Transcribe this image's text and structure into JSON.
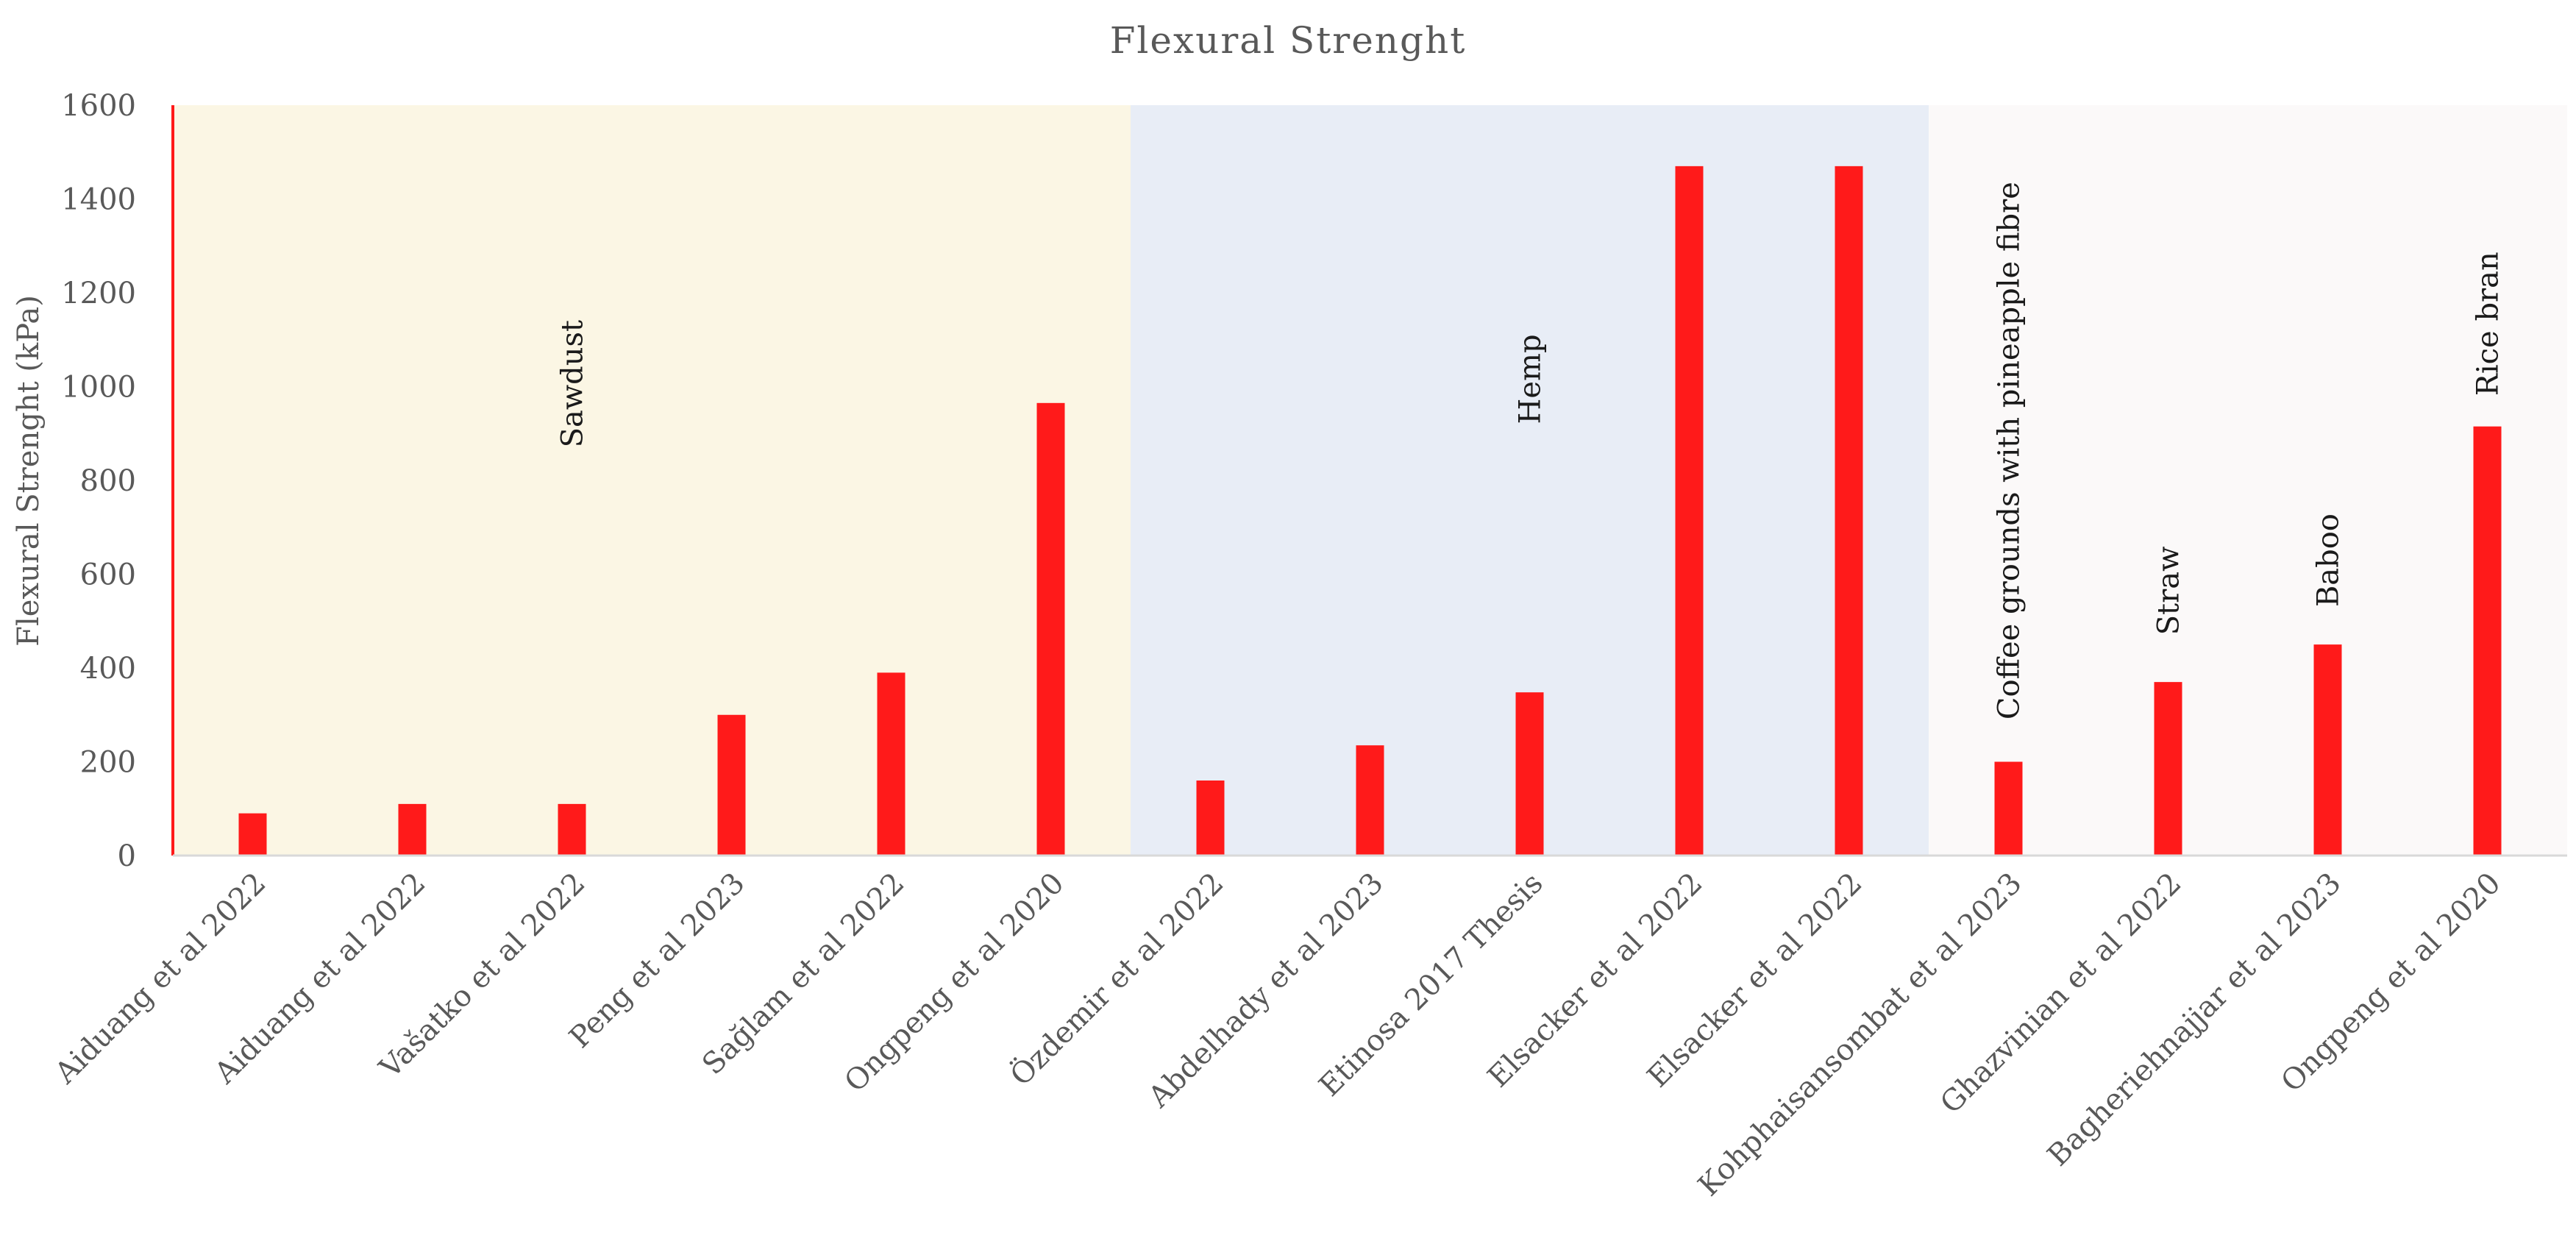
{
  "chart_data": {
    "type": "bar",
    "title": "Flexural  Strenght",
    "ylabel": "Flexural  Strenght (kPa)",
    "xlabel": "",
    "ylim": [
      0,
      1600
    ],
    "yticks": [
      0,
      200,
      400,
      600,
      800,
      1000,
      1200,
      1400,
      1600
    ],
    "grid": false,
    "legend": "none",
    "bar_color": "#ff1a1a",
    "categories": [
      "Aiduang et al  2022",
      "Aiduang et al  2022",
      "Vašatko et al 2022",
      "Peng et al 2023",
      "Sağlam et al  2022",
      "Ongpeng  et al 2020",
      "Özdemir et al  2022",
      "Abdelhady et al 2023",
      "Etinosa 2017 Thesis",
      "Elsacker et al 2022",
      "Elsacker et al 2022",
      "Kohphaisansombat et al 2023",
      "Ghazvinian et al 2022",
      "Bagheriehnajjar et al 2023",
      "Ongpeng  et al 2020"
    ],
    "values": [
      90,
      110,
      110,
      300,
      390,
      965,
      160,
      235,
      348,
      1470,
      1470,
      200,
      370,
      450,
      915
    ],
    "regions": [
      {
        "label": "Sawdust",
        "start": 0,
        "end": 5,
        "color": "#fbf6e4"
      },
      {
        "label": "Hemp",
        "start": 6,
        "end": 10,
        "color": "#e8edf6"
      },
      {
        "label": "",
        "start": 11,
        "end": 14,
        "color": "#fbf9f9"
      }
    ],
    "annotations": [
      {
        "text": "Sawdust",
        "category_index": 2,
        "y": 870
      },
      {
        "text": "Hemp",
        "category_index": 8,
        "y": 920
      },
      {
        "text": "Coffee grounds  with pineapple fibre",
        "category_index": 11,
        "y": 290
      },
      {
        "text": "Straw",
        "category_index": 12,
        "y": 470
      },
      {
        "text": "Baboo",
        "category_index": 13,
        "y": 530
      },
      {
        "text": "Rice bran",
        "category_index": 14,
        "y": 980
      }
    ]
  }
}
